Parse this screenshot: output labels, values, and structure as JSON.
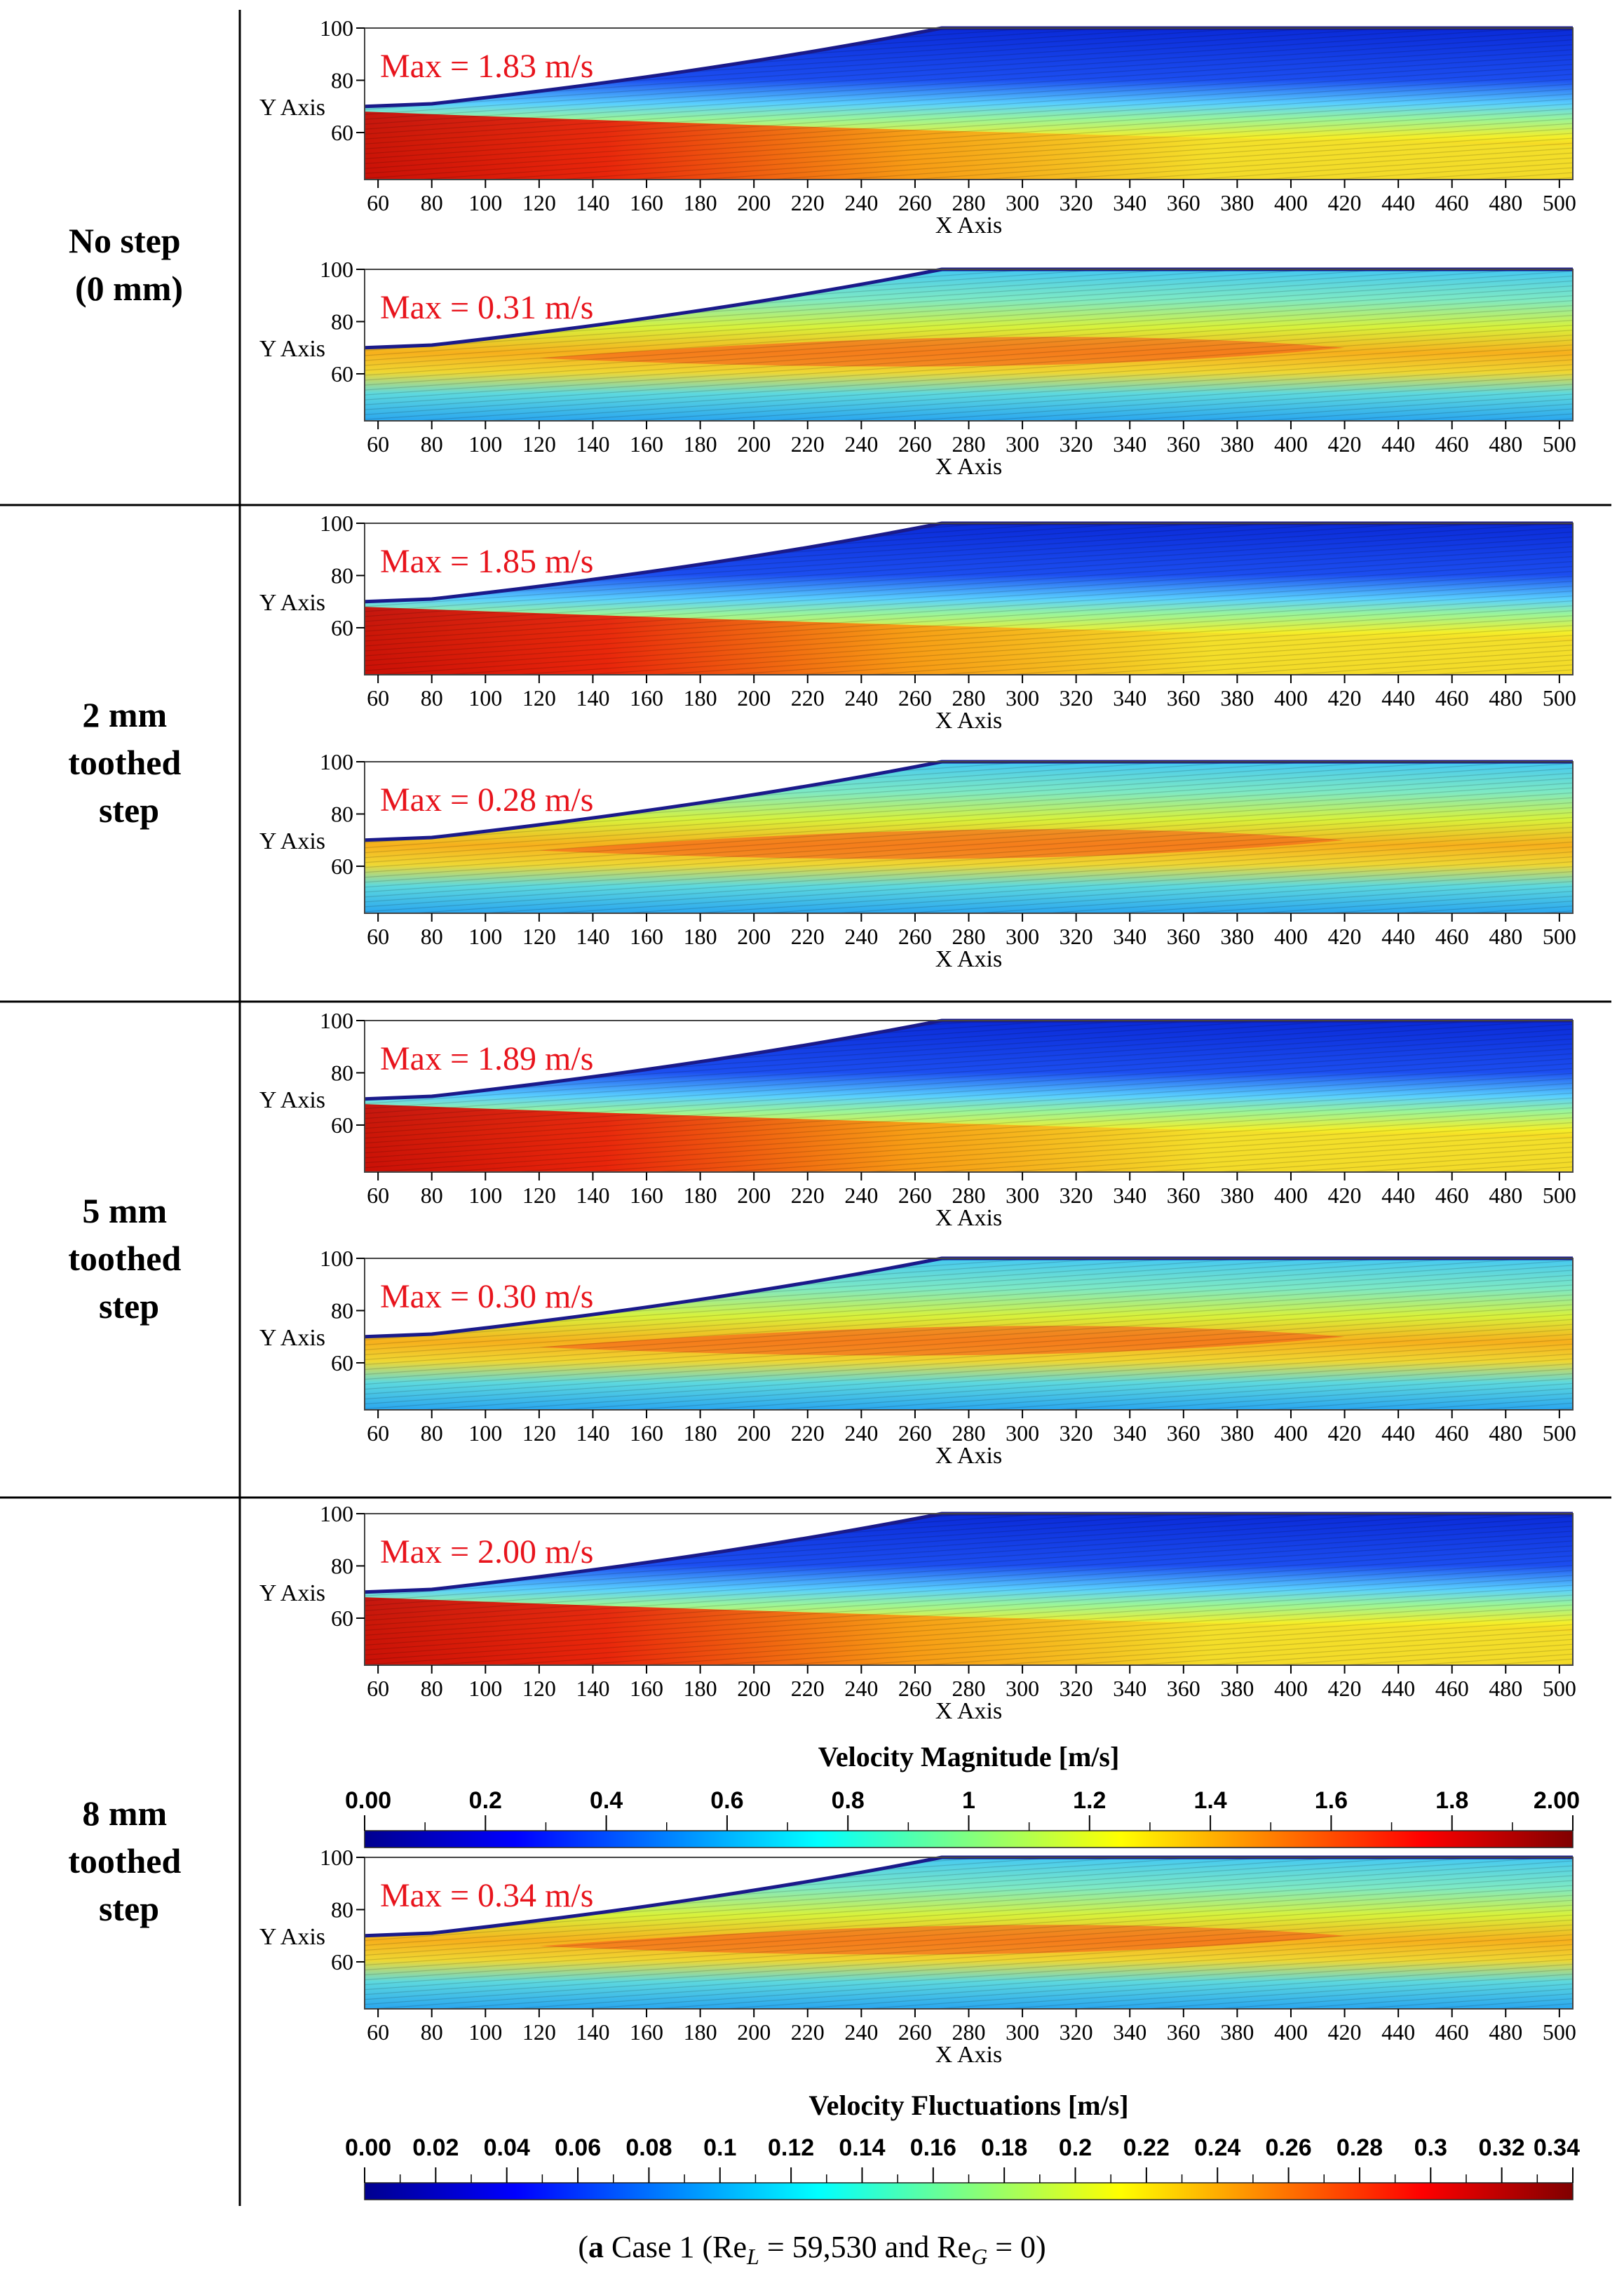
{
  "caption": {
    "label": "a",
    "pre": " Case 1 (Re",
    "sub1": "L",
    "mid": " = 59,530 and Re",
    "sub2": "G",
    "post": " = 0)"
  },
  "row_labels": [
    [
      "No step",
      "(0 mm)"
    ],
    [
      "2 mm",
      "toothed",
      "step"
    ],
    [
      "5 mm",
      "toothed",
      "step"
    ],
    [
      "8 mm",
      "toothed",
      "step"
    ]
  ],
  "colormaps": {
    "jet": [
      "#00008f",
      "#0000ff",
      "#0080ff",
      "#00ffff",
      "#80ff80",
      "#ffff00",
      "#ff8000",
      "#ff0000",
      "#800000"
    ]
  },
  "chart_data": [
    {
      "type": "heatmap",
      "id": "nostep-magnitude",
      "row": "No step (0 mm)",
      "quantity": "Velocity Magnitude",
      "max_label": "Max = 1.83 m/s",
      "max": 1.83,
      "x_ticks": [
        60,
        80,
        100,
        120,
        140,
        160,
        180,
        200,
        220,
        240,
        260,
        280,
        300,
        320,
        340,
        360,
        380,
        400,
        420,
        440,
        460,
        480,
        500
      ],
      "y_ticks": [
        60,
        80,
        100
      ],
      "xlim": [
        55,
        505
      ],
      "ylim": [
        42,
        100
      ],
      "xlabel": "X Axis",
      "ylabel": "Y Axis",
      "surface_profile": [
        [
          55,
          70
        ],
        [
          80,
          71
        ],
        [
          270,
          100
        ],
        [
          505,
          100
        ]
      ]
    },
    {
      "type": "heatmap",
      "id": "nostep-fluctuations",
      "row": "No step (0 mm)",
      "quantity": "Velocity Fluctuations",
      "max_label": "Max = 0.31 m/s",
      "max": 0.31,
      "x_ticks": [
        60,
        80,
        100,
        120,
        140,
        160,
        180,
        200,
        220,
        240,
        260,
        280,
        300,
        320,
        340,
        360,
        380,
        400,
        420,
        440,
        460,
        480,
        500
      ],
      "y_ticks": [
        60,
        80,
        100
      ],
      "xlim": [
        55,
        505
      ],
      "ylim": [
        42,
        100
      ],
      "xlabel": "X Axis",
      "ylabel": "Y Axis",
      "surface_profile": [
        [
          55,
          70
        ],
        [
          80,
          71
        ],
        [
          270,
          100
        ],
        [
          505,
          100
        ]
      ]
    },
    {
      "type": "heatmap",
      "id": "2mm-magnitude",
      "row": "2 mm toothed step",
      "quantity": "Velocity Magnitude",
      "max_label": "Max = 1.85 m/s",
      "max": 1.85,
      "x_ticks": [
        60,
        80,
        100,
        120,
        140,
        160,
        180,
        200,
        220,
        240,
        260,
        280,
        300,
        320,
        340,
        360,
        380,
        400,
        420,
        440,
        460,
        480,
        500
      ],
      "y_ticks": [
        60,
        80,
        100
      ],
      "xlim": [
        55,
        505
      ],
      "ylim": [
        42,
        100
      ],
      "xlabel": "X Axis",
      "ylabel": "Y Axis",
      "surface_profile": [
        [
          55,
          70
        ],
        [
          80,
          71
        ],
        [
          270,
          100
        ],
        [
          505,
          100
        ]
      ]
    },
    {
      "type": "heatmap",
      "id": "2mm-fluctuations",
      "row": "2 mm toothed step",
      "quantity": "Velocity Fluctuations",
      "max_label": "Max = 0.28 m/s",
      "max": 0.28,
      "x_ticks": [
        60,
        80,
        100,
        120,
        140,
        160,
        180,
        200,
        220,
        240,
        260,
        280,
        300,
        320,
        340,
        360,
        380,
        400,
        420,
        440,
        460,
        480,
        500
      ],
      "y_ticks": [
        60,
        80,
        100
      ],
      "xlim": [
        55,
        505
      ],
      "ylim": [
        42,
        100
      ],
      "xlabel": "X Axis",
      "ylabel": "Y Axis",
      "surface_profile": [
        [
          55,
          70
        ],
        [
          80,
          71
        ],
        [
          270,
          100
        ],
        [
          505,
          100
        ]
      ]
    },
    {
      "type": "heatmap",
      "id": "5mm-magnitude",
      "row": "5 mm toothed step",
      "quantity": "Velocity Magnitude",
      "max_label": "Max = 1.89 m/s",
      "max": 1.89,
      "x_ticks": [
        60,
        80,
        100,
        120,
        140,
        160,
        180,
        200,
        220,
        240,
        260,
        280,
        300,
        320,
        340,
        360,
        380,
        400,
        420,
        440,
        460,
        480,
        500
      ],
      "y_ticks": [
        60,
        80,
        100
      ],
      "xlim": [
        55,
        505
      ],
      "ylim": [
        42,
        100
      ],
      "xlabel": "X Axis",
      "ylabel": "Y Axis",
      "surface_profile": [
        [
          55,
          70
        ],
        [
          80,
          71
        ],
        [
          270,
          100
        ],
        [
          505,
          100
        ]
      ]
    },
    {
      "type": "heatmap",
      "id": "5mm-fluctuations",
      "row": "5 mm toothed step",
      "quantity": "Velocity Fluctuations",
      "max_label": "Max = 0.30 m/s",
      "max": 0.3,
      "x_ticks": [
        60,
        80,
        100,
        120,
        140,
        160,
        180,
        200,
        220,
        240,
        260,
        280,
        300,
        320,
        340,
        360,
        380,
        400,
        420,
        440,
        460,
        480,
        500
      ],
      "y_ticks": [
        60,
        80,
        100
      ],
      "xlim": [
        55,
        505
      ],
      "ylim": [
        42,
        100
      ],
      "xlabel": "X Axis",
      "ylabel": "Y Axis",
      "surface_profile": [
        [
          55,
          70
        ],
        [
          80,
          71
        ],
        [
          270,
          100
        ],
        [
          505,
          100
        ]
      ]
    },
    {
      "type": "heatmap",
      "id": "8mm-magnitude",
      "row": "8 mm toothed step",
      "quantity": "Velocity Magnitude",
      "max_label": "Max = 2.00 m/s",
      "max": 2.0,
      "x_ticks": [
        60,
        80,
        100,
        120,
        140,
        160,
        180,
        200,
        220,
        240,
        260,
        280,
        300,
        320,
        340,
        360,
        380,
        400,
        420,
        440,
        460,
        480,
        500
      ],
      "y_ticks": [
        60,
        80,
        100
      ],
      "xlim": [
        55,
        505
      ],
      "ylim": [
        42,
        100
      ],
      "xlabel": "X Axis",
      "ylabel": "Y Axis",
      "surface_profile": [
        [
          55,
          70
        ],
        [
          80,
          71
        ],
        [
          270,
          100
        ],
        [
          505,
          100
        ]
      ]
    },
    {
      "type": "heatmap",
      "id": "8mm-fluctuations",
      "row": "8 mm toothed step",
      "quantity": "Velocity Fluctuations",
      "max_label": "Max = 0.34 m/s",
      "max": 0.34,
      "x_ticks": [
        60,
        80,
        100,
        120,
        140,
        160,
        180,
        200,
        220,
        240,
        260,
        280,
        300,
        320,
        340,
        360,
        380,
        400,
        420,
        440,
        460,
        480,
        500
      ],
      "y_ticks": [
        60,
        80,
        100
      ],
      "xlim": [
        55,
        505
      ],
      "ylim": [
        42,
        100
      ],
      "xlabel": "X Axis",
      "ylabel": "Y Axis",
      "surface_profile": [
        [
          55,
          70
        ],
        [
          80,
          71
        ],
        [
          270,
          100
        ],
        [
          505,
          100
        ]
      ]
    }
  ],
  "colorbars": [
    {
      "id": "magnitude-colorbar",
      "title": "Velocity Magnitude [m/s]",
      "colormap": "jet",
      "range": [
        0,
        2
      ],
      "tick_labels": [
        "0.00",
        "0.2",
        "0.4",
        "0.6",
        "0.8",
        "1",
        "1.2",
        "1.4",
        "1.6",
        "1.8",
        "2.00"
      ]
    },
    {
      "id": "fluctuation-colorbar",
      "title": "Velocity Fluctuations [m/s]",
      "colormap": "jet",
      "range": [
        0,
        0.34
      ],
      "tick_labels": [
        "0.00",
        "0.02",
        "0.04",
        "0.06",
        "0.08",
        "0.1",
        "0.12",
        "0.14",
        "0.16",
        "0.18",
        "0.2",
        "0.22",
        "0.24",
        "0.26",
        "0.28",
        "0.3",
        "0.32",
        "0.34"
      ]
    }
  ]
}
